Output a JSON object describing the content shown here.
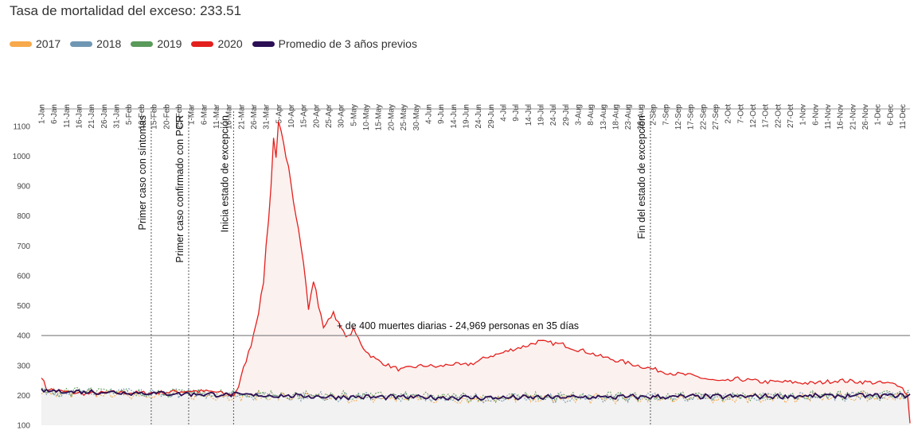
{
  "chart_data": {
    "type": "line",
    "title": "Tasa de mortalidad del exceso: 233.51",
    "xlabel": "",
    "ylabel": "",
    "ylim": [
      100,
      1150
    ],
    "yticks": [
      100,
      200,
      300,
      400,
      500,
      600,
      700,
      800,
      900,
      1000,
      1100
    ],
    "grid": false,
    "legend_position": "top-left",
    "x_tick_labels": [
      "1-Jan",
      "6-Jan",
      "11-Jan",
      "16-Jan",
      "21-Jan",
      "26-Jan",
      "31-Jan",
      "5-Feb",
      "10-Feb",
      "15-Feb",
      "20-Feb",
      "25-Feb",
      "1-Mar",
      "6-Mar",
      "11-Mar",
      "16-Mar",
      "21-Mar",
      "26-Mar",
      "31-Mar",
      "5-Apr",
      "10-Apr",
      "15-Apr",
      "20-Apr",
      "25-Apr",
      "30-Apr",
      "5-May",
      "10-May",
      "15-May",
      "20-May",
      "25-May",
      "30-May",
      "4-Jun",
      "9-Jun",
      "14-Jun",
      "19-Jun",
      "24-Jun",
      "29-Jun",
      "4-Jul",
      "9-Jul",
      "14-Jul",
      "19-Jul",
      "24-Jul",
      "29-Jul",
      "3-Aug",
      "8-Aug",
      "13-Aug",
      "18-Aug",
      "23-Aug",
      "28-Aug",
      "2-Sep",
      "7-Sep",
      "12-Sep",
      "17-Sep",
      "22-Sep",
      "27-Sep",
      "2-Oct",
      "7-Oct",
      "12-Oct",
      "17-Oct",
      "22-Oct",
      "27-Oct",
      "1-Nov",
      "6-Nov",
      "11-Nov",
      "16-Nov",
      "21-Nov",
      "26-Nov",
      "1-Dec",
      "6-Dec",
      "11-Dec"
    ],
    "x_day_range": [
      1,
      349
    ],
    "series": [
      {
        "name": "2017",
        "color": "#f7a94b",
        "style": "dashed",
        "x": [
          1,
          60,
          120,
          180,
          240,
          300,
          349
        ],
        "y": [
          208,
          202,
          190,
          188,
          190,
          192,
          196
        ]
      },
      {
        "name": "2018",
        "color": "#6f97b3",
        "style": "dashed",
        "x": [
          1,
          60,
          120,
          180,
          240,
          300,
          349
        ],
        "y": [
          212,
          206,
          196,
          192,
          194,
          196,
          200
        ]
      },
      {
        "name": "2019",
        "color": "#5a9a5a",
        "style": "dashed",
        "x": [
          1,
          60,
          120,
          180,
          240,
          300,
          349
        ],
        "y": [
          214,
          208,
          198,
          194,
          196,
          198,
          202
        ]
      },
      {
        "name": "2020",
        "color": "#e3201d",
        "style": "solid",
        "x": [
          1,
          3,
          10,
          20,
          30,
          40,
          50,
          60,
          70,
          75,
          78,
          80,
          82,
          85,
          88,
          90,
          91,
          92,
          93,
          94,
          95,
          96,
          97,
          98,
          99,
          100,
          102,
          104,
          106,
          108,
          110,
          111,
          112,
          114,
          116,
          118,
          120,
          122,
          124,
          126,
          128,
          130,
          132,
          135,
          140,
          145,
          150,
          155,
          160,
          165,
          170,
          175,
          180,
          185,
          190,
          195,
          200,
          205,
          210,
          215,
          220,
          225,
          230,
          235,
          240,
          245,
          250,
          255,
          260,
          265,
          270,
          275,
          280,
          285,
          290,
          300,
          310,
          320,
          330,
          340,
          345,
          348,
          349
        ],
        "y": [
          265,
          222,
          212,
          205,
          210,
          208,
          210,
          215,
          212,
          205,
          200,
          230,
          290,
          370,
          480,
          580,
          700,
          790,
          900,
          1060,
          1000,
          1110,
          1080,
          1040,
          990,
          960,
          850,
          760,
          650,
          490,
          580,
          550,
          500,
          430,
          450,
          480,
          440,
          410,
          395,
          420,
          390,
          360,
          340,
          320,
          300,
          285,
          295,
          300,
          295,
          305,
          300,
          310,
          330,
          340,
          355,
          365,
          380,
          375,
          370,
          355,
          345,
          330,
          320,
          310,
          300,
          290,
          280,
          272,
          268,
          260,
          250,
          245,
          255,
          250,
          245,
          245,
          240,
          250,
          245,
          240,
          235,
          200,
          110
        ]
      },
      {
        "name": "Promedio de 3 años previos",
        "color": "#2b0f54",
        "style": "solid",
        "x": [
          1,
          60,
          120,
          180,
          240,
          300,
          349
        ],
        "y": [
          215,
          205,
          195,
          192,
          195,
          197,
          200
        ]
      }
    ],
    "reference_line": {
      "y": 400,
      "label": "+ de 400 muertes diarias - 24,969 personas en 35 días"
    },
    "annotations": [
      {
        "day": 45,
        "label": "Primer caso con síntomas"
      },
      {
        "day": 60,
        "label": "Primer caso confirmado con PCR"
      },
      {
        "day": 78,
        "label": "Inicia estado de excepción"
      },
      {
        "day": 245,
        "label": "Fin del estado de excepción"
      }
    ]
  }
}
